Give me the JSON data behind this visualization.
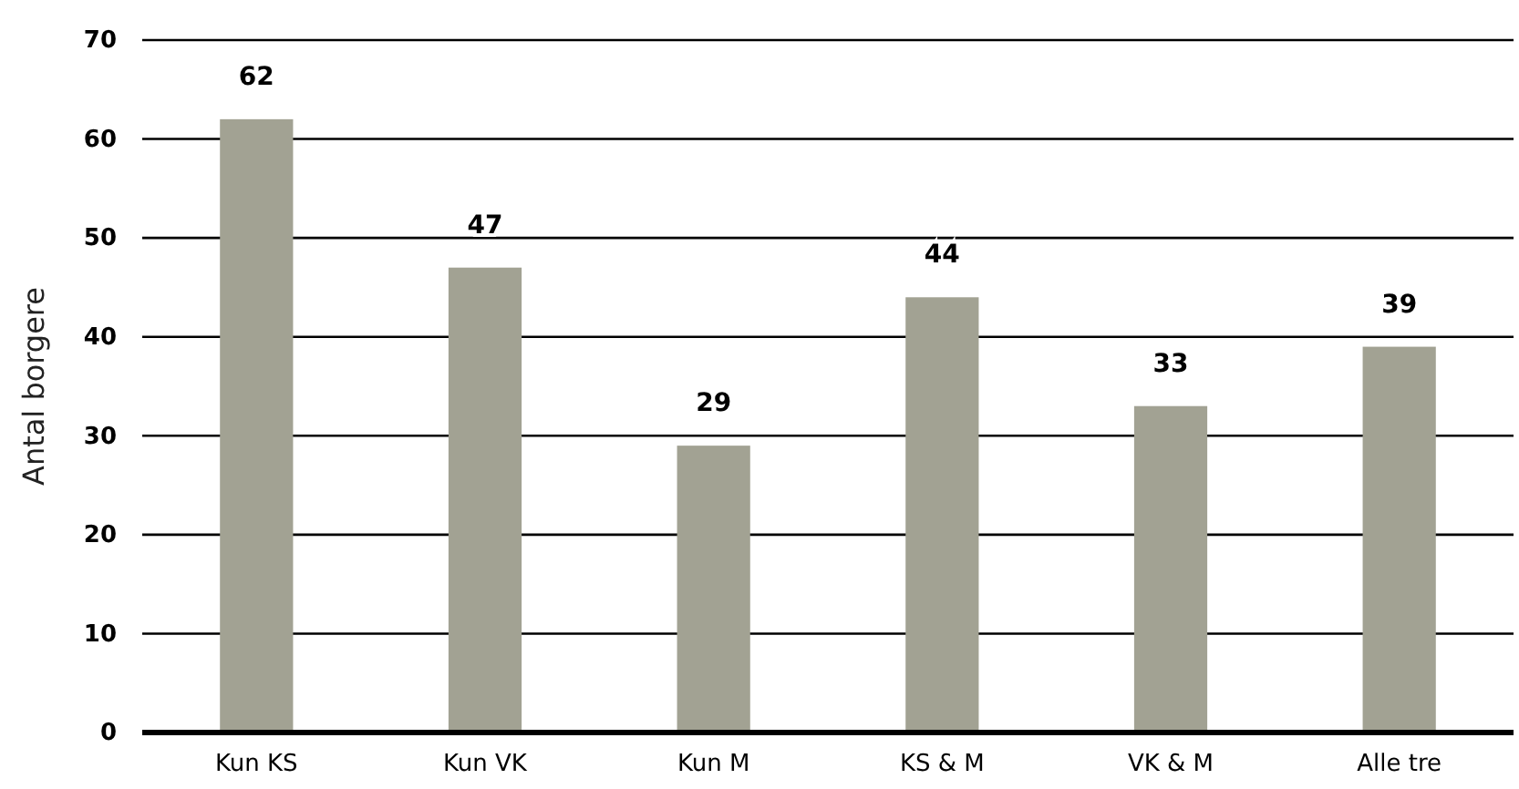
{
  "chart_data": {
    "type": "bar",
    "ylabel": "Antal borgere",
    "categories": [
      "Kun KS",
      "Kun VK",
      "Kun M",
      "KS & M",
      "VK & M",
      "Alle tre"
    ],
    "values": [
      62,
      47,
      29,
      44,
      33,
      39
    ],
    "color": "#a2a293",
    "ylim": [
      0,
      70
    ],
    "yticks": [
      0,
      10,
      20,
      30,
      40,
      50,
      60,
      70
    ],
    "grid": "y",
    "data_labels": true
  }
}
